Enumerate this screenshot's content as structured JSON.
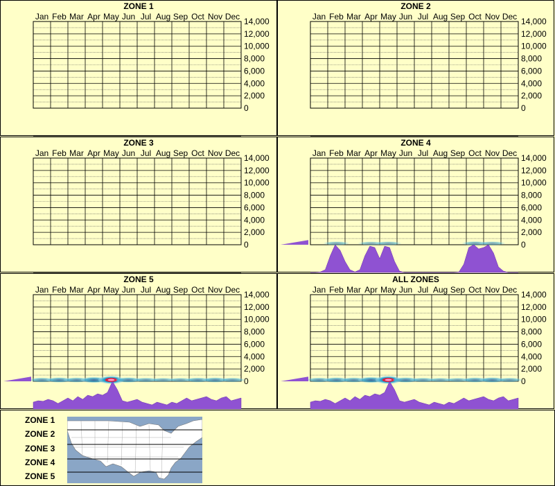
{
  "months": [
    "Jan",
    "Feb",
    "Mar",
    "Apr",
    "May",
    "Jun",
    "Jul",
    "Aug",
    "Sep",
    "Oct",
    "Nov",
    "Dec"
  ],
  "y_ticks": [
    "14,000",
    "12,000",
    "10,000",
    "8,000",
    "6,000",
    "4,000",
    "2,000",
    "0"
  ],
  "panels": [
    {
      "title": "ZONE 1"
    },
    {
      "title": "ZONE 2"
    },
    {
      "title": "ZONE 3"
    },
    {
      "title": "ZONE 4"
    },
    {
      "title": "ZONE 5"
    },
    {
      "title": "ALL ZONES"
    }
  ],
  "legend": {
    "zones": [
      "ZONE 1",
      "ZONE 2",
      "ZONE 3",
      "ZONE 4",
      "ZONE 5"
    ]
  },
  "colors": {
    "background": "#ffffc8",
    "profile_fill": "#8f52d2",
    "heat_light": "#bfe9f5",
    "heat_mid": "#2aa5d0",
    "heat_dark": "#0b3d8f",
    "heat_hot": "#d8203c",
    "map_water": "#8aa6c6",
    "map_land": "#ffffff"
  },
  "chart_data": [
    {
      "type": "heatmap",
      "title": "ZONE 1",
      "x": [
        "Jan",
        "Feb",
        "Mar",
        "Apr",
        "May",
        "Jun",
        "Jul",
        "Aug",
        "Sep",
        "Oct",
        "Nov",
        "Dec"
      ],
      "ylim": [
        0,
        14000
      ],
      "grid": true,
      "heat": [],
      "profile": [],
      "side_bar": 0
    },
    {
      "type": "heatmap",
      "title": "ZONE 2",
      "x": [
        "Jan",
        "Feb",
        "Mar",
        "Apr",
        "May",
        "Jun",
        "Jul",
        "Aug",
        "Sep",
        "Oct",
        "Nov",
        "Dec"
      ],
      "ylim": [
        0,
        14000
      ],
      "grid": true,
      "heat": [],
      "profile": [],
      "side_bar": 0
    },
    {
      "type": "heatmap",
      "title": "ZONE 3",
      "x": [
        "Jan",
        "Feb",
        "Mar",
        "Apr",
        "May",
        "Jun",
        "Jul",
        "Aug",
        "Sep",
        "Oct",
        "Nov",
        "Dec"
      ],
      "ylim": [
        0,
        14000
      ],
      "grid": true,
      "heat": [],
      "profile": [],
      "side_bar": 0
    },
    {
      "type": "heatmap",
      "title": "ZONE 4",
      "x": [
        "Jan",
        "Feb",
        "Mar",
        "Apr",
        "May",
        "Jun",
        "Jul",
        "Aug",
        "Sep",
        "Oct",
        "Nov",
        "Dec"
      ],
      "ylim": [
        0,
        14000
      ],
      "grid": true,
      "heat": [
        0,
        0.2,
        0,
        0.15,
        0.2,
        0,
        0,
        0,
        0,
        0.25,
        0.2,
        0
      ],
      "profile": [
        0,
        0,
        0.02,
        0.1,
        0.6,
        1.0,
        0.8,
        0.4,
        0.1,
        0.02,
        0.1,
        0.6,
        0.95,
        0.9,
        0.5,
        0.95,
        0.9,
        0.4,
        0.05,
        0,
        0,
        0,
        0,
        0,
        0,
        0,
        0,
        0,
        0,
        0,
        0.02,
        0.3,
        0.9,
        1.0,
        0.85,
        0.9,
        1.0,
        0.7,
        0.2,
        0.05,
        0,
        0,
        0
      ],
      "side_bar": 0.6
    },
    {
      "type": "heatmap",
      "title": "ZONE 5",
      "x": [
        "Jan",
        "Feb",
        "Mar",
        "Apr",
        "May",
        "Jun",
        "Jul",
        "Aug",
        "Sep",
        "Oct",
        "Nov",
        "Dec"
      ],
      "ylim": [
        0,
        14000
      ],
      "grid": true,
      "heat": [
        0.35,
        0.45,
        0.4,
        0.6,
        1.0,
        0.45,
        0.3,
        0.25,
        0.25,
        0.35,
        0.4,
        0.3
      ],
      "profile": [
        0.25,
        0.3,
        0.28,
        0.35,
        0.3,
        0.2,
        0.3,
        0.4,
        0.3,
        0.45,
        0.35,
        0.5,
        0.45,
        0.55,
        0.5,
        0.6,
        1.0,
        0.7,
        0.3,
        0.25,
        0.3,
        0.35,
        0.25,
        0.2,
        0.15,
        0.25,
        0.2,
        0.15,
        0.25,
        0.2,
        0.3,
        0.4,
        0.3,
        0.35,
        0.4,
        0.45,
        0.35,
        0.3,
        0.4,
        0.45,
        0.3,
        0.35,
        0.4
      ],
      "side_bar": 0.6
    },
    {
      "type": "heatmap",
      "title": "ALL ZONES",
      "x": [
        "Jan",
        "Feb",
        "Mar",
        "Apr",
        "May",
        "Jun",
        "Jul",
        "Aug",
        "Sep",
        "Oct",
        "Nov",
        "Dec"
      ],
      "ylim": [
        0,
        14000
      ],
      "grid": true,
      "heat": [
        0.35,
        0.45,
        0.4,
        0.6,
        1.0,
        0.45,
        0.3,
        0.25,
        0.25,
        0.4,
        0.45,
        0.3
      ],
      "profile": [
        0.25,
        0.3,
        0.28,
        0.35,
        0.3,
        0.2,
        0.3,
        0.4,
        0.3,
        0.45,
        0.35,
        0.5,
        0.45,
        0.55,
        0.5,
        0.6,
        1.0,
        0.7,
        0.3,
        0.25,
        0.3,
        0.35,
        0.25,
        0.2,
        0.15,
        0.25,
        0.2,
        0.15,
        0.25,
        0.2,
        0.3,
        0.4,
        0.3,
        0.35,
        0.4,
        0.45,
        0.35,
        0.3,
        0.4,
        0.45,
        0.3,
        0.35,
        0.4
      ],
      "side_bar": 0.6
    }
  ]
}
